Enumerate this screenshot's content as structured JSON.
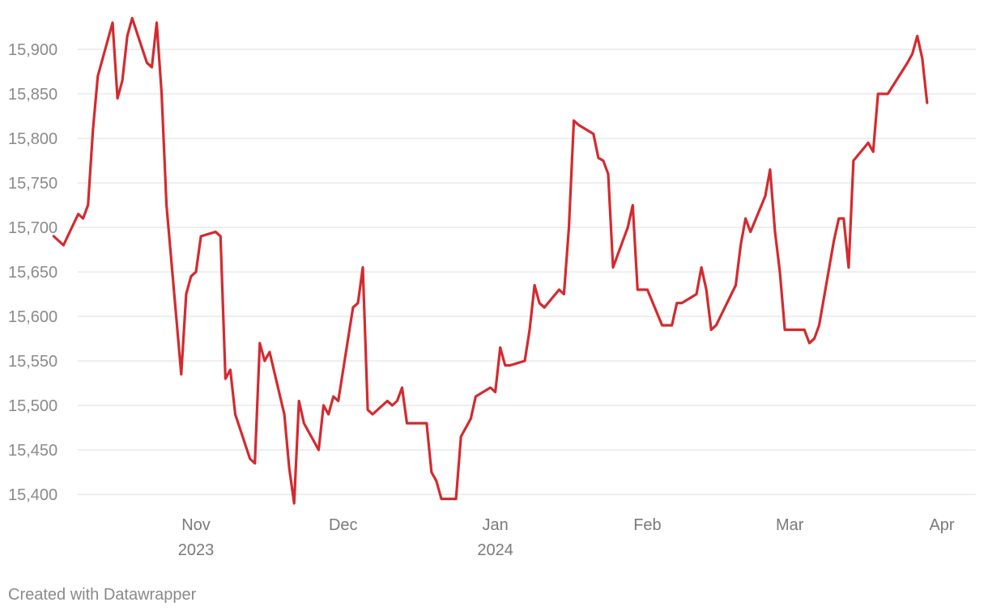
{
  "chart_data": {
    "type": "line",
    "title": "",
    "xlabel": "",
    "ylabel": "",
    "ylim": [
      15380,
      15930
    ],
    "xlim": [
      "2023-10-06",
      "2024-04-05"
    ],
    "grid": true,
    "colors": {
      "line": "#d42a2f",
      "grid": "#e3e3e3",
      "text": "#8a8a8a"
    },
    "y_ticks": [
      15400,
      15450,
      15500,
      15550,
      15600,
      15650,
      15700,
      15750,
      15800,
      15850,
      15900
    ],
    "y_tick_labels": [
      "15,400",
      "15,450",
      "15,500",
      "15,550",
      "15,600",
      "15,650",
      "15,700",
      "15,750",
      "15,800",
      "15,850",
      "15,900"
    ],
    "x_ticks": [
      {
        "date": "2023-11-01",
        "label": "Nov",
        "sublabel": "2023"
      },
      {
        "date": "2023-12-01",
        "label": "Dec",
        "sublabel": ""
      },
      {
        "date": "2024-01-01",
        "label": "Jan",
        "sublabel": "2024"
      },
      {
        "date": "2024-02-01",
        "label": "Feb",
        "sublabel": ""
      },
      {
        "date": "2024-03-01",
        "label": "Mar",
        "sublabel": ""
      },
      {
        "date": "2024-04-01",
        "label": "Apr",
        "sublabel": ""
      }
    ],
    "series": [
      {
        "color": "#d42a2f",
        "points": [
          [
            "2023-10-03",
            15690
          ],
          [
            "2023-10-05",
            15680
          ],
          [
            "2023-10-08",
            15715
          ],
          [
            "2023-10-09",
            15710
          ],
          [
            "2023-10-10",
            15725
          ],
          [
            "2023-10-11",
            15810
          ],
          [
            "2023-10-12",
            15870
          ],
          [
            "2023-10-15",
            15930
          ],
          [
            "2023-10-16",
            15845
          ],
          [
            "2023-10-17",
            15865
          ],
          [
            "2023-10-18",
            15915
          ],
          [
            "2023-10-19",
            15935
          ],
          [
            "2023-10-22",
            15885
          ],
          [
            "2023-10-23",
            15880
          ],
          [
            "2023-10-24",
            15930
          ],
          [
            "2023-10-25",
            15850
          ],
          [
            "2023-10-26",
            15725
          ],
          [
            "2023-10-29",
            15535
          ],
          [
            "2023-10-30",
            15625
          ],
          [
            "2023-10-31",
            15645
          ],
          [
            "2023-11-01",
            15650
          ],
          [
            "2023-11-02",
            15690
          ],
          [
            "2023-11-05",
            15695
          ],
          [
            "2023-11-06",
            15690
          ],
          [
            "2023-11-07",
            15530
          ],
          [
            "2023-11-08",
            15540
          ],
          [
            "2023-11-09",
            15490
          ],
          [
            "2023-11-12",
            15440
          ],
          [
            "2023-11-13",
            15435
          ],
          [
            "2023-11-14",
            15570
          ],
          [
            "2023-11-15",
            15550
          ],
          [
            "2023-11-16",
            15560
          ],
          [
            "2023-11-19",
            15490
          ],
          [
            "2023-11-20",
            15430
          ],
          [
            "2023-11-21",
            15390
          ],
          [
            "2023-11-22",
            15505
          ],
          [
            "2023-11-23",
            15480
          ],
          [
            "2023-11-26",
            15450
          ],
          [
            "2023-11-27",
            15500
          ],
          [
            "2023-11-28",
            15490
          ],
          [
            "2023-11-29",
            15510
          ],
          [
            "2023-11-30",
            15505
          ],
          [
            "2023-12-03",
            15610
          ],
          [
            "2023-12-04",
            15615
          ],
          [
            "2023-12-05",
            15655
          ],
          [
            "2023-12-06",
            15495
          ],
          [
            "2023-12-07",
            15490
          ],
          [
            "2023-12-10",
            15505
          ],
          [
            "2023-12-11",
            15500
          ],
          [
            "2023-12-12",
            15505
          ],
          [
            "2023-12-13",
            15520
          ],
          [
            "2023-12-14",
            15480
          ],
          [
            "2023-12-18",
            15480
          ],
          [
            "2023-12-19",
            15425
          ],
          [
            "2023-12-20",
            15415
          ],
          [
            "2023-12-21",
            15395
          ],
          [
            "2023-12-24",
            15395
          ],
          [
            "2023-12-25",
            15465
          ],
          [
            "2023-12-27",
            15485
          ],
          [
            "2023-12-28",
            15510
          ],
          [
            "2023-12-31",
            15520
          ],
          [
            "2024-01-01",
            15515
          ],
          [
            "2024-01-02",
            15565
          ],
          [
            "2024-01-03",
            15545
          ],
          [
            "2024-01-04",
            15545
          ],
          [
            "2024-01-07",
            15550
          ],
          [
            "2024-01-08",
            15585
          ],
          [
            "2024-01-09",
            15635
          ],
          [
            "2024-01-10",
            15615
          ],
          [
            "2024-01-11",
            15610
          ],
          [
            "2024-01-14",
            15630
          ],
          [
            "2024-01-15",
            15625
          ],
          [
            "2024-01-16",
            15700
          ],
          [
            "2024-01-17",
            15820
          ],
          [
            "2024-01-18",
            15815
          ],
          [
            "2024-01-21",
            15805
          ],
          [
            "2024-01-22",
            15778
          ],
          [
            "2024-01-23",
            15775
          ],
          [
            "2024-01-24",
            15760
          ],
          [
            "2024-01-25",
            15655
          ],
          [
            "2024-01-28",
            15700
          ],
          [
            "2024-01-29",
            15725
          ],
          [
            "2024-01-30",
            15630
          ],
          [
            "2024-02-01",
            15630
          ],
          [
            "2024-02-04",
            15590
          ],
          [
            "2024-02-06",
            15590
          ],
          [
            "2024-02-07",
            15615
          ],
          [
            "2024-02-08",
            15615
          ],
          [
            "2024-02-11",
            15625
          ],
          [
            "2024-02-12",
            15655
          ],
          [
            "2024-02-13",
            15630
          ],
          [
            "2024-02-14",
            15585
          ],
          [
            "2024-02-15",
            15590
          ],
          [
            "2024-02-19",
            15635
          ],
          [
            "2024-02-20",
            15680
          ],
          [
            "2024-02-21",
            15710
          ],
          [
            "2024-02-22",
            15695
          ],
          [
            "2024-02-25",
            15735
          ],
          [
            "2024-02-26",
            15765
          ],
          [
            "2024-02-27",
            15695
          ],
          [
            "2024-02-28",
            15650
          ],
          [
            "2024-02-29",
            15585
          ],
          [
            "2024-03-04",
            15585
          ],
          [
            "2024-03-05",
            15570
          ],
          [
            "2024-03-06",
            15575
          ],
          [
            "2024-03-07",
            15590
          ],
          [
            "2024-03-10",
            15685
          ],
          [
            "2024-03-11",
            15710
          ],
          [
            "2024-03-12",
            15710
          ],
          [
            "2024-03-13",
            15655
          ],
          [
            "2024-03-14",
            15775
          ],
          [
            "2024-03-17",
            15795
          ],
          [
            "2024-03-18",
            15785
          ],
          [
            "2024-03-19",
            15850
          ],
          [
            "2024-03-21",
            15850
          ],
          [
            "2024-03-25",
            15885
          ],
          [
            "2024-03-26",
            15895
          ],
          [
            "2024-03-27",
            15915
          ],
          [
            "2024-03-28",
            15890
          ],
          [
            "2024-03-29",
            15840
          ]
        ]
      }
    ]
  },
  "footer": {
    "credit": "Created with Datawrapper"
  }
}
